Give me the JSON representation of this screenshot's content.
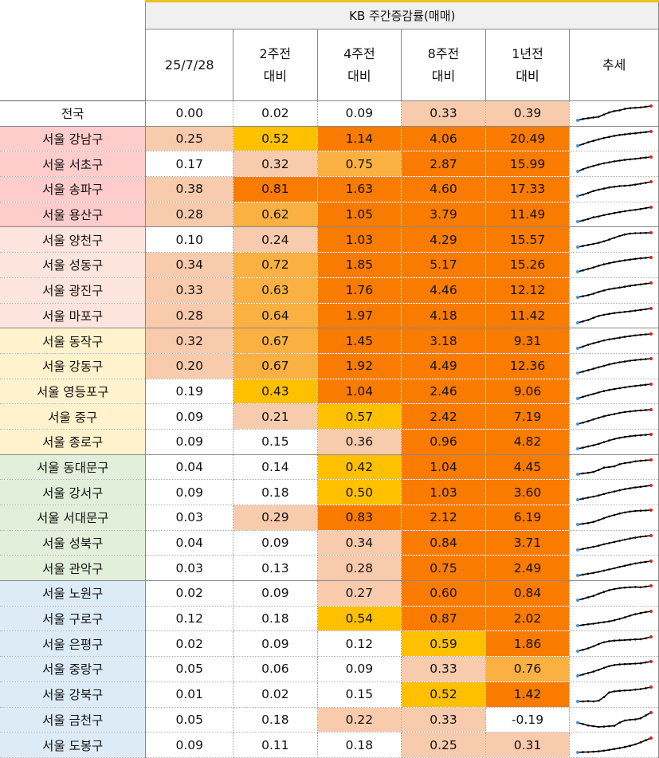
{
  "header": {
    "title": "KB 주간증감률(매매)",
    "columns": [
      {
        "line1": "25/7/28",
        "line2": ""
      },
      {
        "line1": "2주전",
        "line2": "대비"
      },
      {
        "line1": "4주전",
        "line2": "대비"
      },
      {
        "line1": "8주전",
        "line2": "대비"
      },
      {
        "line1": "1년전",
        "line2": "대비"
      },
      {
        "line1": "추세",
        "line2": ""
      }
    ]
  },
  "colors": {
    "white": "#ffffff",
    "peach": "#f8cbad",
    "yellow": "#ffc000",
    "orange": "#f97b00",
    "orange_light": "#fbb042",
    "group_pink": "#ffcccc",
    "group_salmon": "#fde4dc",
    "group_cream": "#fff2cc",
    "group_green": "#e2efda",
    "group_blue": "#ddebf7",
    "trend_line": "#000000",
    "trend_dot_start": "#4a90d9",
    "trend_dot_end": "#e02020"
  },
  "rows": [
    {
      "name": "전국",
      "group": "white",
      "values": [
        "0.00",
        "0.02",
        "0.09",
        "0.33",
        "0.39"
      ],
      "fills": [
        "white",
        "white",
        "white",
        "peach",
        "peach"
      ],
      "trend": [
        0.0,
        0.1,
        0.15,
        0.2,
        0.25,
        0.4,
        0.55,
        0.65,
        0.7,
        0.8,
        0.85,
        0.88,
        0.9,
        0.95,
        1.0
      ]
    },
    {
      "name": "서울 강남구",
      "group": "group_pink",
      "values": [
        "0.25",
        "0.52",
        "1.14",
        "4.06",
        "20.49"
      ],
      "fills": [
        "peach",
        "yellow",
        "orange",
        "orange",
        "orange"
      ],
      "trend": [
        0.0,
        0.12,
        0.25,
        0.35,
        0.45,
        0.55,
        0.62,
        0.7,
        0.76,
        0.8,
        0.85,
        0.88,
        0.92,
        0.96,
        1.0
      ]
    },
    {
      "name": "서울 서초구",
      "group": "group_pink",
      "values": [
        "0.17",
        "0.32",
        "0.75",
        "2.87",
        "15.99"
      ],
      "fills": [
        "white",
        "peach",
        "orange_light",
        "orange",
        "orange"
      ],
      "trend": [
        0.0,
        0.15,
        0.28,
        0.38,
        0.48,
        0.56,
        0.63,
        0.7,
        0.75,
        0.8,
        0.84,
        0.88,
        0.92,
        0.96,
        1.0
      ]
    },
    {
      "name": "서울 송파구",
      "group": "group_pink",
      "values": [
        "0.38",
        "0.81",
        "1.63",
        "4.60",
        "17.33"
      ],
      "fills": [
        "peach",
        "orange",
        "orange",
        "orange",
        "orange"
      ],
      "trend": [
        0.0,
        0.1,
        0.22,
        0.35,
        0.45,
        0.52,
        0.6,
        0.65,
        0.7,
        0.72,
        0.75,
        0.8,
        0.86,
        0.92,
        1.0
      ]
    },
    {
      "name": "서울 용산구",
      "group": "group_pink",
      "values": [
        "0.28",
        "0.62",
        "1.05",
        "3.79",
        "11.49"
      ],
      "fills": [
        "peach",
        "orange_light",
        "orange",
        "orange",
        "orange"
      ],
      "trend": [
        0.0,
        0.08,
        0.18,
        0.3,
        0.36,
        0.45,
        0.52,
        0.6,
        0.66,
        0.72,
        0.78,
        0.82,
        0.88,
        0.94,
        1.0
      ]
    },
    {
      "name": "서울 양천구",
      "group": "group_salmon",
      "values": [
        "0.10",
        "0.24",
        "1.03",
        "4.29",
        "15.57"
      ],
      "fills": [
        "white",
        "peach",
        "orange",
        "orange",
        "orange"
      ],
      "trend": [
        0.0,
        0.08,
        0.15,
        0.22,
        0.3,
        0.4,
        0.52,
        0.65,
        0.78,
        0.88,
        0.94,
        0.97,
        0.98,
        0.99,
        1.0
      ]
    },
    {
      "name": "서울 성동구",
      "group": "group_salmon",
      "values": [
        "0.34",
        "0.72",
        "1.85",
        "5.17",
        "15.26"
      ],
      "fills": [
        "peach",
        "orange_light",
        "orange",
        "orange",
        "orange"
      ],
      "trend": [
        0.0,
        0.1,
        0.2,
        0.3,
        0.42,
        0.52,
        0.6,
        0.68,
        0.74,
        0.8,
        0.85,
        0.9,
        0.94,
        0.97,
        1.0
      ]
    },
    {
      "name": "서울 광진구",
      "group": "group_salmon",
      "values": [
        "0.33",
        "0.63",
        "1.76",
        "4.46",
        "12.12"
      ],
      "fills": [
        "peach",
        "orange_light",
        "orange",
        "orange",
        "orange"
      ],
      "trend": [
        0.0,
        0.08,
        0.15,
        0.25,
        0.38,
        0.48,
        0.56,
        0.62,
        0.68,
        0.74,
        0.8,
        0.85,
        0.9,
        0.95,
        1.0
      ]
    },
    {
      "name": "서울 마포구",
      "group": "group_salmon",
      "values": [
        "0.28",
        "0.64",
        "1.97",
        "4.18",
        "11.42"
      ],
      "fills": [
        "peach",
        "orange_light",
        "orange",
        "orange",
        "orange"
      ],
      "trend": [
        0.0,
        0.1,
        0.2,
        0.35,
        0.48,
        0.56,
        0.62,
        0.68,
        0.72,
        0.76,
        0.8,
        0.85,
        0.9,
        0.95,
        1.0
      ]
    },
    {
      "name": "서울 동작구",
      "group": "group_cream",
      "values": [
        "0.32",
        "0.67",
        "1.45",
        "3.18",
        "9.31"
      ],
      "fills": [
        "peach",
        "orange_light",
        "orange",
        "orange",
        "orange"
      ],
      "trend": [
        0.0,
        0.12,
        0.25,
        0.35,
        0.45,
        0.55,
        0.62,
        0.68,
        0.74,
        0.8,
        0.85,
        0.9,
        0.94,
        0.97,
        1.0
      ]
    },
    {
      "name": "서울 강동구",
      "group": "group_cream",
      "values": [
        "0.20",
        "0.67",
        "1.92",
        "4.49",
        "12.36"
      ],
      "fills": [
        "peach",
        "orange_light",
        "orange",
        "orange",
        "orange"
      ],
      "trend": [
        0.0,
        0.1,
        0.2,
        0.3,
        0.4,
        0.5,
        0.6,
        0.68,
        0.75,
        0.8,
        0.86,
        0.9,
        0.94,
        0.97,
        1.0
      ]
    },
    {
      "name": "서울 영등포구",
      "group": "group_cream",
      "values": [
        "0.19",
        "0.43",
        "1.04",
        "2.46",
        "9.06"
      ],
      "fills": [
        "white",
        "yellow",
        "orange",
        "orange",
        "orange"
      ],
      "trend": [
        0.0,
        0.12,
        0.22,
        0.32,
        0.42,
        0.52,
        0.6,
        0.66,
        0.72,
        0.78,
        0.84,
        0.88,
        0.92,
        0.96,
        1.0
      ]
    },
    {
      "name": "서울 중구",
      "group": "group_cream",
      "values": [
        "0.09",
        "0.21",
        "0.57",
        "2.42",
        "7.19"
      ],
      "fills": [
        "white",
        "peach",
        "yellow",
        "orange",
        "orange"
      ],
      "trend": [
        0.0,
        0.1,
        0.2,
        0.32,
        0.44,
        0.54,
        0.62,
        0.7,
        0.78,
        0.84,
        0.88,
        0.92,
        0.95,
        0.98,
        1.0
      ]
    },
    {
      "name": "서울 종로구",
      "group": "group_cream",
      "values": [
        "0.09",
        "0.15",
        "0.36",
        "0.96",
        "4.82"
      ],
      "fills": [
        "white",
        "white",
        "peach",
        "orange",
        "orange"
      ],
      "trend": [
        0.0,
        0.08,
        0.16,
        0.24,
        0.34,
        0.46,
        0.58,
        0.68,
        0.76,
        0.82,
        0.87,
        0.91,
        0.94,
        0.97,
        1.0
      ]
    },
    {
      "name": "서울 동대문구",
      "group": "group_green",
      "values": [
        "0.04",
        "0.14",
        "0.42",
        "1.04",
        "4.45"
      ],
      "fills": [
        "white",
        "white",
        "yellow",
        "orange",
        "orange"
      ],
      "trend": [
        0.0,
        0.06,
        0.1,
        0.16,
        0.3,
        0.46,
        0.5,
        0.55,
        0.7,
        0.78,
        0.82,
        0.9,
        0.94,
        0.97,
        1.0
      ]
    },
    {
      "name": "서울 강서구",
      "group": "group_green",
      "values": [
        "0.09",
        "0.18",
        "0.50",
        "1.03",
        "3.60"
      ],
      "fills": [
        "white",
        "white",
        "yellow",
        "orange",
        "orange"
      ],
      "trend": [
        0.0,
        0.08,
        0.15,
        0.22,
        0.3,
        0.4,
        0.5,
        0.58,
        0.66,
        0.74,
        0.8,
        0.86,
        0.9,
        0.95,
        1.0
      ]
    },
    {
      "name": "서울 서대문구",
      "group": "group_green",
      "values": [
        "0.03",
        "0.29",
        "0.83",
        "2.12",
        "6.19"
      ],
      "fills": [
        "white",
        "peach",
        "orange",
        "orange",
        "orange"
      ],
      "trend": [
        0.0,
        0.05,
        0.1,
        0.18,
        0.3,
        0.44,
        0.56,
        0.66,
        0.76,
        0.84,
        0.9,
        0.94,
        0.96,
        0.98,
        1.0
      ]
    },
    {
      "name": "서울 성북구",
      "group": "group_green",
      "values": [
        "0.04",
        "0.09",
        "0.34",
        "0.84",
        "3.71"
      ],
      "fills": [
        "white",
        "white",
        "peach",
        "orange",
        "orange"
      ],
      "trend": [
        0.0,
        0.08,
        0.15,
        0.22,
        0.3,
        0.4,
        0.48,
        0.56,
        0.64,
        0.72,
        0.8,
        0.86,
        0.92,
        0.96,
        1.0
      ]
    },
    {
      "name": "서울 관악구",
      "group": "group_green",
      "values": [
        "0.03",
        "0.13",
        "0.28",
        "0.75",
        "2.49"
      ],
      "fills": [
        "white",
        "white",
        "peach",
        "orange",
        "orange"
      ],
      "trend": [
        0.0,
        0.06,
        0.12,
        0.18,
        0.26,
        0.34,
        0.42,
        0.5,
        0.6,
        0.68,
        0.76,
        0.84,
        0.9,
        0.95,
        1.0
      ]
    },
    {
      "name": "서울 노원구",
      "group": "group_blue",
      "values": [
        "0.02",
        "0.09",
        "0.27",
        "0.60",
        "0.84"
      ],
      "fills": [
        "white",
        "white",
        "peach",
        "orange",
        "orange"
      ],
      "trend": [
        0.0,
        0.1,
        0.2,
        0.3,
        0.45,
        0.58,
        0.7,
        0.78,
        0.84,
        0.88,
        0.9,
        0.92,
        0.9,
        0.95,
        1.0
      ]
    },
    {
      "name": "서울 구로구",
      "group": "group_blue",
      "values": [
        "0.12",
        "0.18",
        "0.54",
        "0.87",
        "2.02"
      ],
      "fills": [
        "white",
        "white",
        "yellow",
        "orange",
        "orange"
      ],
      "trend": [
        0.0,
        0.05,
        0.1,
        0.14,
        0.2,
        0.25,
        0.3,
        0.38,
        0.48,
        0.58,
        0.7,
        0.8,
        0.88,
        0.95,
        1.0
      ]
    },
    {
      "name": "서울 은평구",
      "group": "group_blue",
      "values": [
        "0.02",
        "0.09",
        "0.12",
        "0.59",
        "1.86"
      ],
      "fills": [
        "white",
        "white",
        "white",
        "yellow",
        "orange"
      ],
      "trend": [
        0.0,
        0.1,
        0.2,
        0.34,
        0.5,
        0.62,
        0.7,
        0.74,
        0.76,
        0.78,
        0.8,
        0.82,
        0.84,
        0.9,
        1.0
      ]
    },
    {
      "name": "서울 중랑구",
      "group": "group_blue",
      "values": [
        "0.05",
        "0.06",
        "0.09",
        "0.33",
        "0.76"
      ],
      "fills": [
        "white",
        "white",
        "white",
        "peach",
        "orange_light"
      ],
      "trend": [
        0.0,
        0.1,
        0.2,
        0.3,
        0.42,
        0.56,
        0.68,
        0.76,
        0.8,
        0.82,
        0.84,
        0.86,
        0.88,
        0.94,
        1.0
      ]
    },
    {
      "name": "서울 강북구",
      "group": "group_blue",
      "values": [
        "0.01",
        "0.02",
        "0.15",
        "0.52",
        "1.42"
      ],
      "fills": [
        "white",
        "white",
        "white",
        "yellow",
        "orange"
      ],
      "trend": [
        0.0,
        0.0,
        0.02,
        0.0,
        0.05,
        0.3,
        0.62,
        0.7,
        0.74,
        0.76,
        0.78,
        0.82,
        0.86,
        0.92,
        1.0
      ]
    },
    {
      "name": "서울 금천구",
      "group": "group_blue",
      "values": [
        "0.05",
        "0.18",
        "0.22",
        "0.33",
        "-0.19"
      ],
      "fills": [
        "white",
        "white",
        "peach",
        "peach",
        "white"
      ],
      "trend": [
        0.3,
        0.2,
        0.1,
        0.05,
        0.0,
        0.02,
        0.05,
        0.08,
        0.3,
        0.45,
        0.5,
        0.52,
        0.6,
        0.8,
        1.0
      ]
    },
    {
      "name": "서울 도봉구",
      "group": "group_blue",
      "values": [
        "0.09",
        "0.11",
        "0.18",
        "0.25",
        "0.31"
      ],
      "fills": [
        "white",
        "white",
        "white",
        "peach",
        "peach"
      ],
      "trend": [
        0.0,
        0.02,
        0.03,
        0.05,
        0.08,
        0.12,
        0.18,
        0.24,
        0.3,
        0.38,
        0.46,
        0.56,
        0.7,
        0.85,
        1.0
      ]
    }
  ]
}
